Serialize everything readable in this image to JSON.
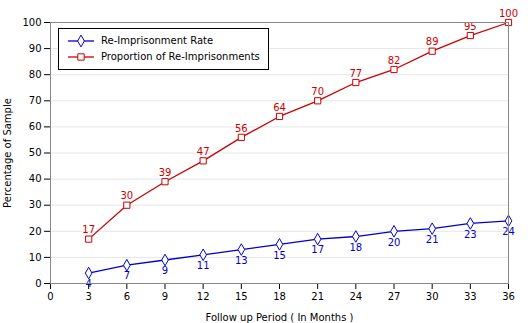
{
  "chart_data": {
    "type": "line",
    "x": [
      3,
      6,
      9,
      12,
      15,
      18,
      21,
      24,
      27,
      30,
      33,
      36
    ],
    "series": [
      {
        "name": "Re-Imprisonment Rate",
        "color": "#0000cc",
        "marker": "diamond",
        "values": [
          4,
          7,
          9,
          11,
          13,
          15,
          17,
          18,
          20,
          21,
          23,
          24
        ]
      },
      {
        "name": "Proportion of Re-Imprisonments",
        "color": "#cc0000",
        "marker": "square",
        "values": [
          17,
          30,
          39,
          47,
          56,
          64,
          70,
          77,
          82,
          89,
          95,
          100
        ]
      }
    ],
    "xlabel": "Follow up Period ( In Months )",
    "ylabel": "Percentage of Sample",
    "xlim": [
      0,
      36
    ],
    "ylim": [
      0,
      100
    ],
    "xticks": [
      0,
      3,
      6,
      9,
      12,
      15,
      18,
      21,
      24,
      27,
      30,
      33,
      36
    ],
    "yticks": [
      0,
      10,
      20,
      30,
      40,
      50,
      60,
      70,
      80,
      90,
      100
    ],
    "grid": true,
    "legend": "upper left",
    "data_labels": true
  }
}
